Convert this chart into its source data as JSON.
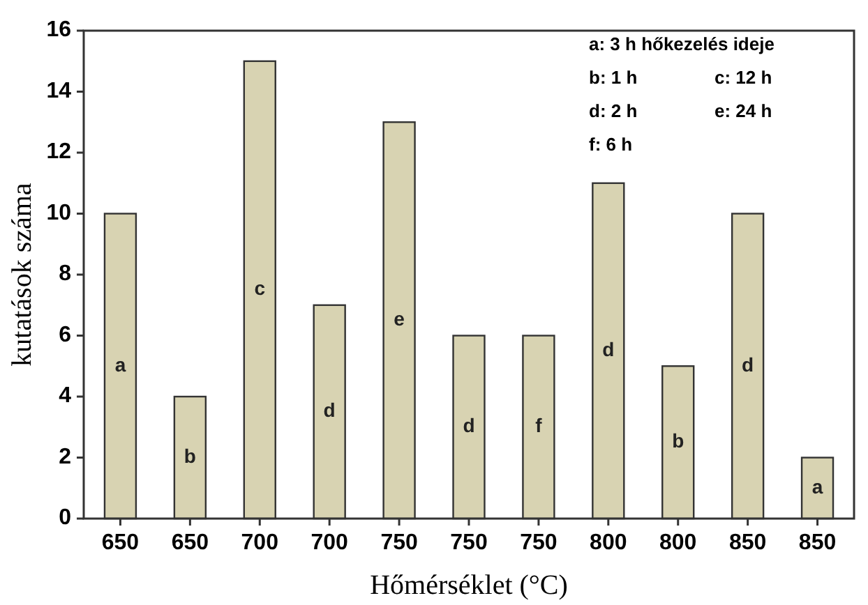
{
  "chart_data": {
    "type": "bar",
    "xlabel": "Hőmérséklet (°C)",
    "ylabel": "kutatások száma",
    "categories": [
      "650",
      "650",
      "700",
      "700",
      "750",
      "750",
      "750",
      "800",
      "800",
      "850",
      "850"
    ],
    "values": [
      10,
      4,
      15,
      7,
      13,
      6,
      6,
      11,
      5,
      10,
      2
    ],
    "value_labels": [
      "a",
      "b",
      "c",
      "d",
      "e",
      "d",
      "f",
      "d",
      "b",
      "d",
      "a"
    ],
    "color": "#d8d3b2",
    "ylim": [
      0,
      16
    ],
    "yticks": [
      0,
      2,
      4,
      6,
      8,
      10,
      12,
      14,
      16
    ],
    "grid": false,
    "annotations": [
      "a: 3 h hőkezelés ideje",
      "b: 1 h",
      "c:  12 h",
      "d: 2 h",
      "e: 24 h",
      "f: 6 h"
    ]
  }
}
